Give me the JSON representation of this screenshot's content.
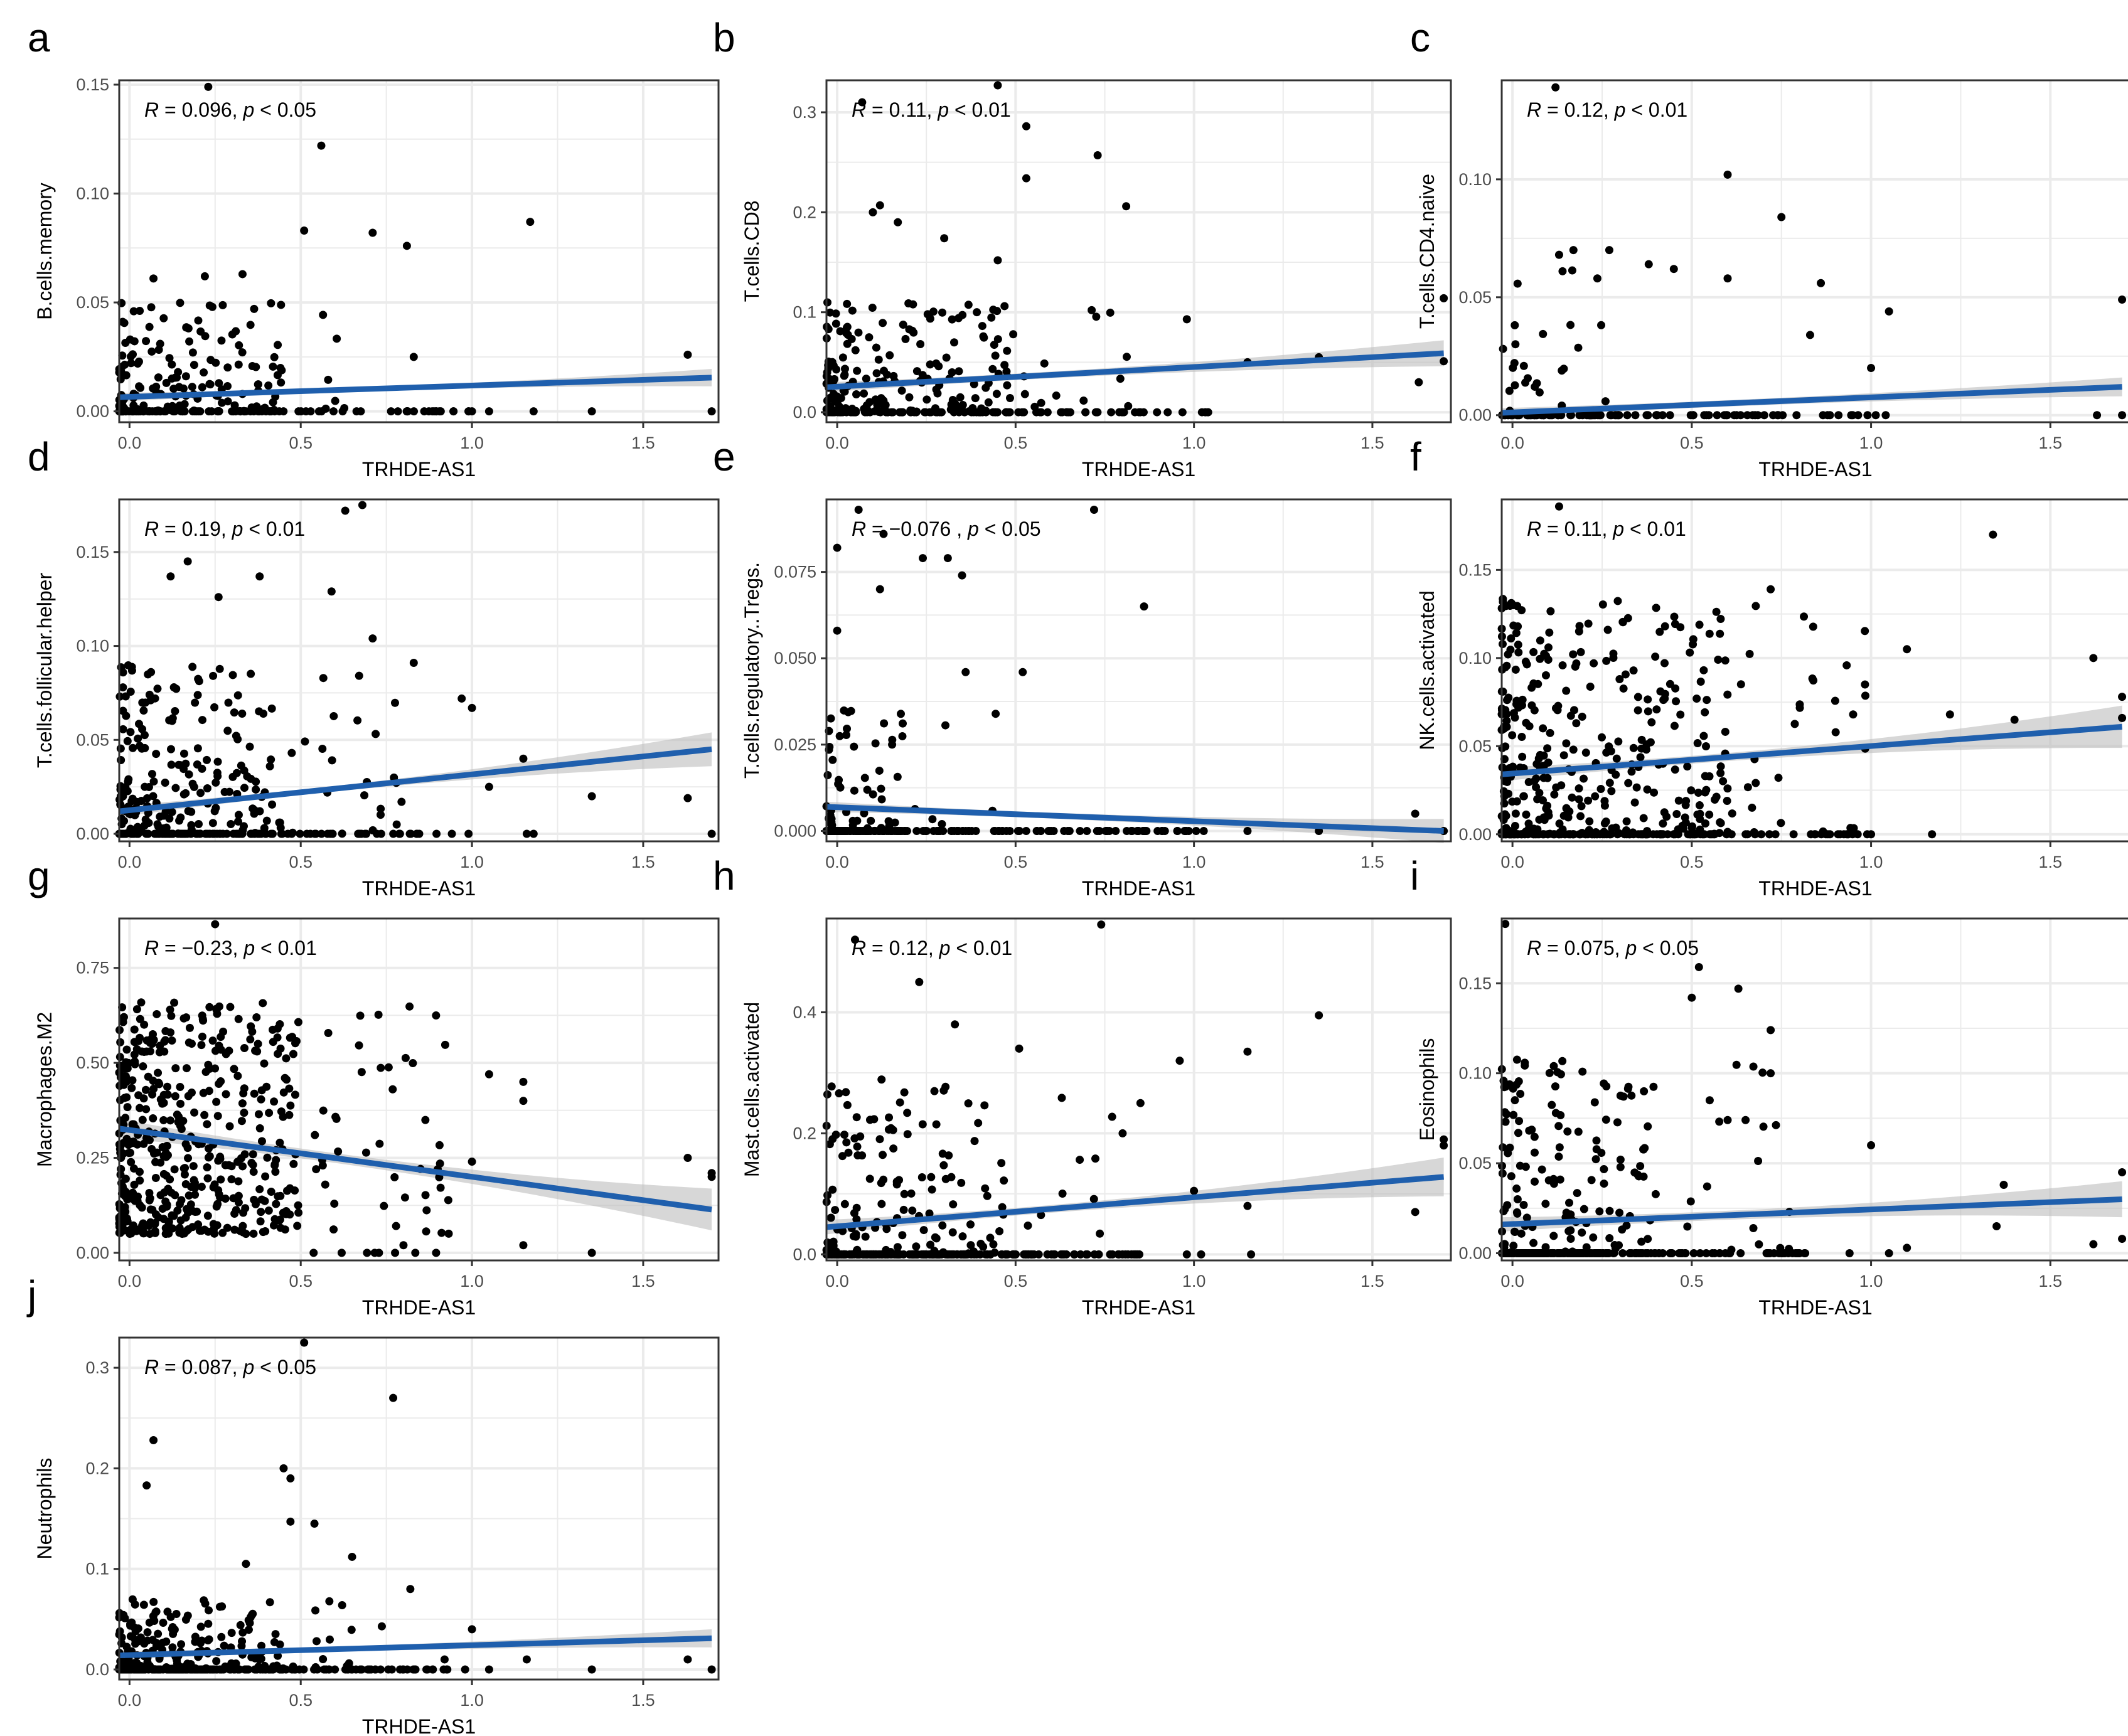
{
  "figure": {
    "x_label": "TRHDE-AS1",
    "x_ticks": [
      "0.0",
      "0.5",
      "1.0",
      "1.5"
    ],
    "colors": {
      "point": "#000000",
      "line": "#1f5fad",
      "band": "#bdbdbd",
      "grid": "#ebebeb",
      "border": "#333333"
    }
  },
  "chart_data": [
    {
      "type": "scatter",
      "panel": "a",
      "ylabel": "B.cells.memory",
      "r_label": "R",
      "r_text": " = 0.096, ",
      "p_label": "p",
      "p_text": " < 0.05",
      "xlim": [
        -0.03,
        1.72
      ],
      "ylim": [
        -0.005,
        0.152
      ],
      "yticks": [
        0.0,
        0.05,
        0.1,
        0.15
      ],
      "ytick_labels": [
        "0.00",
        "0.05",
        "0.10",
        "0.15"
      ],
      "trend": {
        "x": [
          -0.03,
          1.7
        ],
        "y": [
          0.0065,
          0.0155
        ]
      },
      "band_halfwidth": [
        0.002,
        0.001,
        0.004
      ],
      "outliers": [
        [
          0.23,
          0.149
        ],
        [
          0.56,
          0.122
        ],
        [
          0.51,
          0.083
        ],
        [
          0.71,
          0.082
        ],
        [
          0.81,
          0.076
        ],
        [
          1.17,
          0.087
        ],
        [
          0.07,
          0.061
        ],
        [
          0.22,
          0.062
        ],
        [
          0.33,
          0.063
        ],
        [
          1.63,
          0.026
        ],
        [
          0.83,
          0.025
        ],
        [
          1.18,
          0.0
        ],
        [
          1.35,
          0.0
        ],
        [
          1.7,
          0.0
        ],
        [
          1.0,
          0.0
        ],
        [
          1.05,
          0.0
        ]
      ],
      "cloud": {
        "n": 230,
        "x": [
          -0.03,
          0.65
        ],
        "xmax_dense": 0.45,
        "y": [
          0.0,
          0.05
        ],
        "zero_frac": 0.35,
        "zero_x": [
          0.35,
          1.0
        ],
        "zero_n": 30,
        "seed": 11
      }
    },
    {
      "type": "scatter",
      "panel": "b",
      "ylabel": "T.cells.CD8",
      "r_label": "R",
      "r_text": " = 0.11, ",
      "p_label": "p",
      "p_text": " < 0.01",
      "xlim": [
        -0.03,
        1.72
      ],
      "ylim": [
        -0.01,
        0.332
      ],
      "yticks": [
        0.0,
        0.1,
        0.2,
        0.3
      ],
      "ytick_labels": [
        "0.0",
        "0.1",
        "0.2",
        "0.3"
      ],
      "trend": {
        "x": [
          -0.03,
          1.7
        ],
        "y": [
          0.025,
          0.059
        ]
      },
      "band_halfwidth": [
        0.005,
        0.004,
        0.013
      ],
      "outliers": [
        [
          0.07,
          0.31
        ],
        [
          0.45,
          0.327
        ],
        [
          0.53,
          0.286
        ],
        [
          0.53,
          0.234
        ],
        [
          0.73,
          0.257
        ],
        [
          0.81,
          0.206
        ],
        [
          0.12,
          0.207
        ],
        [
          0.1,
          0.2
        ],
        [
          0.17,
          0.19
        ],
        [
          0.45,
          0.152
        ],
        [
          0.3,
          0.174
        ],
        [
          0.98,
          0.093
        ],
        [
          1.7,
          0.114
        ],
        [
          1.7,
          0.051
        ],
        [
          1.15,
          0.05
        ],
        [
          1.35,
          0.055
        ],
        [
          1.63,
          0.03
        ]
      ],
      "cloud": {
        "n": 260,
        "x": [
          -0.03,
          0.85
        ],
        "xmax_dense": 0.5,
        "y": [
          0.0,
          0.11
        ],
        "zero_frac": 0.3,
        "zero_x": [
          0.4,
          1.05
        ],
        "zero_n": 30,
        "seed": 23
      }
    },
    {
      "type": "scatter",
      "panel": "c",
      "ylabel": "T.cells.CD4.naive",
      "r_label": "R",
      "r_text": " = 0.12, ",
      "p_label": "p",
      "p_text": " < 0.01",
      "xlim": [
        -0.03,
        1.72
      ],
      "ylim": [
        -0.003,
        0.142
      ],
      "yticks": [
        0.0,
        0.05,
        0.1
      ],
      "ytick_labels": [
        "0.00",
        "0.05",
        "0.10"
      ],
      "trend": {
        "x": [
          -0.03,
          1.7
        ],
        "y": [
          0.001,
          0.012
        ]
      },
      "band_halfwidth": [
        0.002,
        0.0015,
        0.004
      ],
      "outliers": [
        [
          0.12,
          0.139
        ],
        [
          0.6,
          0.102
        ],
        [
          0.75,
          0.084
        ],
        [
          0.6,
          0.058
        ],
        [
          0.86,
          0.056
        ],
        [
          1.05,
          0.044
        ],
        [
          0.83,
          0.034
        ],
        [
          1.0,
          0.02
        ],
        [
          1.7,
          0.049
        ],
        [
          0.27,
          0.07
        ],
        [
          0.17,
          0.07
        ],
        [
          0.13,
          0.068
        ],
        [
          0.38,
          0.064
        ],
        [
          0.45,
          0.062
        ],
        [
          1.7,
          0.0
        ],
        [
          1.63,
          0.0
        ]
      ],
      "cloud": {
        "n": 60,
        "x": [
          -0.03,
          0.35
        ],
        "xmax_dense": 0.25,
        "y": [
          0.0,
          0.065
        ],
        "zero_frac": 0.55,
        "zero_x": [
          0.0,
          1.05
        ],
        "zero_n": 70,
        "seed": 37
      }
    },
    {
      "type": "scatter",
      "panel": "d",
      "ylabel": "T.cells.follicular.helper",
      "r_label": "R",
      "r_text": " = 0.19, ",
      "p_label": "p",
      "p_text": " < 0.01",
      "xlim": [
        -0.03,
        1.72
      ],
      "ylim": [
        -0.004,
        0.178
      ],
      "yticks": [
        0.0,
        0.05,
        0.1,
        0.15
      ],
      "ytick_labels": [
        "0.00",
        "0.05",
        "0.10",
        "0.15"
      ],
      "trend": {
        "x": [
          -0.03,
          1.7
        ],
        "y": [
          0.012,
          0.045
        ]
      },
      "band_halfwidth": [
        0.003,
        0.002,
        0.009
      ],
      "outliers": [
        [
          0.63,
          0.172
        ],
        [
          0.68,
          0.175
        ],
        [
          0.17,
          0.145
        ],
        [
          0.12,
          0.137
        ],
        [
          0.38,
          0.137
        ],
        [
          0.26,
          0.126
        ],
        [
          0.59,
          0.129
        ],
        [
          0.83,
          0.091
        ],
        [
          0.71,
          0.104
        ],
        [
          0.97,
          0.072
        ],
        [
          1.0,
          0.067
        ],
        [
          1.15,
          0.04
        ],
        [
          1.05,
          0.025
        ],
        [
          1.35,
          0.02
        ],
        [
          1.63,
          0.019
        ],
        [
          1.7,
          0.0
        ],
        [
          1.16,
          0.0
        ],
        [
          1.18,
          0.0
        ],
        [
          0.99,
          0.0
        ]
      ],
      "cloud": {
        "n": 300,
        "x": [
          -0.03,
          0.8
        ],
        "xmax_dense": 0.45,
        "y": [
          0.0,
          0.09
        ],
        "zero_frac": 0.3,
        "zero_x": [
          0.0,
          0.95
        ],
        "zero_n": 35,
        "seed": 41
      }
    },
    {
      "type": "scatter",
      "panel": "e",
      "ylabel": "T.cells.regulatory..Tregs.",
      "r_label": "R",
      "r_text": " = −0.076 , ",
      "p_label": "p",
      "p_text": " < 0.05",
      "xlim": [
        -0.03,
        1.72
      ],
      "ylim": [
        -0.003,
        0.096
      ],
      "yticks": [
        0.0,
        0.025,
        0.05,
        0.075
      ],
      "ytick_labels": [
        "0.000",
        "0.025",
        "0.050",
        "0.075"
      ],
      "trend": {
        "x": [
          -0.03,
          1.7
        ],
        "y": [
          0.007,
          0.0
        ]
      },
      "band_halfwidth": [
        0.0015,
        0.001,
        0.0035
      ],
      "outliers": [
        [
          0.06,
          0.093
        ],
        [
          0.72,
          0.093
        ],
        [
          0.13,
          0.086
        ],
        [
          0.24,
          0.079
        ],
        [
          0.31,
          0.079
        ],
        [
          0.35,
          0.074
        ],
        [
          0.0,
          0.082
        ],
        [
          0.12,
          0.07
        ],
        [
          0.52,
          0.046
        ],
        [
          0.36,
          0.046
        ],
        [
          0.86,
          0.065
        ],
        [
          0.0,
          0.0
        ],
        [
          1.62,
          0.005
        ],
        [
          1.7,
          0.0
        ],
        [
          1.15,
          0.0
        ],
        [
          1.35,
          0.0
        ],
        [
          0.0,
          0.058
        ]
      ],
      "cloud": {
        "n": 150,
        "x": [
          -0.03,
          0.55
        ],
        "xmax_dense": 0.2,
        "y": [
          0.0,
          0.035
        ],
        "zero_frac": 0.55,
        "zero_x": [
          -0.03,
          1.05
        ],
        "zero_n": 80,
        "seed": 53
      }
    },
    {
      "type": "scatter",
      "panel": "f",
      "ylabel": "NK.cells.activated",
      "r_label": "R",
      "r_text": " = 0.11, ",
      "p_label": "p",
      "p_text": " < 0.01",
      "xlim": [
        -0.03,
        1.72
      ],
      "ylim": [
        -0.004,
        0.19
      ],
      "yticks": [
        0.0,
        0.05,
        0.1,
        0.15
      ],
      "ytick_labels": [
        "0.00",
        "0.05",
        "0.10",
        "0.15"
      ],
      "trend": {
        "x": [
          -0.03,
          1.7
        ],
        "y": [
          0.034,
          0.061
        ]
      },
      "band_halfwidth": [
        0.004,
        0.003,
        0.012
      ],
      "outliers": [
        [
          0.13,
          0.186
        ],
        [
          1.34,
          0.17
        ],
        [
          0.72,
          0.139
        ],
        [
          1.62,
          0.1
        ],
        [
          1.7,
          0.078
        ],
        [
          1.7,
          0.066
        ],
        [
          1.1,
          0.105
        ],
        [
          1.4,
          0.065
        ],
        [
          1.22,
          0.068
        ],
        [
          1.17,
          0.0
        ],
        [
          1.0,
          0.0
        ],
        [
          0.95,
          0.068
        ]
      ],
      "cloud": {
        "n": 480,
        "x": [
          -0.03,
          1.0
        ],
        "xmax_dense": 0.6,
        "y": [
          0.0,
          0.135
        ],
        "zero_frac": 0.25,
        "zero_x": [
          -0.03,
          0.95
        ],
        "zero_n": 40,
        "seed": 67
      }
    },
    {
      "type": "scatter",
      "panel": "g",
      "ylabel": "Macrophages.M2",
      "r_label": "R",
      "r_text": " = −0.23, ",
      "p_label": "p",
      "p_text": " < 0.01",
      "xlim": [
        -0.03,
        1.72
      ],
      "ylim": [
        -0.02,
        0.88
      ],
      "yticks": [
        0.0,
        0.25,
        0.5,
        0.75
      ],
      "ytick_labels": [
        "0.00",
        "0.25",
        "0.50",
        "0.75"
      ],
      "trend": {
        "x": [
          -0.03,
          1.7
        ],
        "y": [
          0.327,
          0.114
        ]
      },
      "band_halfwidth": [
        0.025,
        0.015,
        0.055
      ],
      "outliers": [
        [
          0.25,
          0.865
        ],
        [
          1.05,
          0.47
        ],
        [
          1.15,
          0.45
        ],
        [
          1.15,
          0.4
        ],
        [
          1.0,
          0.24
        ],
        [
          1.15,
          0.02
        ],
        [
          1.35,
          0.0
        ],
        [
          1.63,
          0.25
        ],
        [
          1.7,
          0.2
        ],
        [
          1.7,
          0.21
        ],
        [
          0.8,
          0.02
        ],
        [
          0.9,
          0.22
        ]
      ],
      "cloud": {
        "n": 520,
        "x": [
          -0.03,
          0.95
        ],
        "xmax_dense": 0.5,
        "y": [
          0.05,
          0.66
        ],
        "zero_frac": 0.0,
        "zero_x": [
          0.5,
          0.9
        ],
        "zero_n": 8,
        "seed": 71
      }
    },
    {
      "type": "scatter",
      "panel": "h",
      "ylabel": "Mast.cells.activated",
      "r_label": "R",
      "r_text": " = 0.12, ",
      "p_label": "p",
      "p_text": " < 0.01",
      "xlim": [
        -0.03,
        1.72
      ],
      "ylim": [
        -0.01,
        0.555
      ],
      "yticks": [
        0.0,
        0.2,
        0.4
      ],
      "ytick_labels": [
        "0.0",
        "0.2",
        "0.4"
      ],
      "trend": {
        "x": [
          -0.03,
          1.7
        ],
        "y": [
          0.045,
          0.128
        ]
      },
      "band_halfwidth": [
        0.012,
        0.008,
        0.032
      ],
      "outliers": [
        [
          0.05,
          0.52
        ],
        [
          0.74,
          0.545
        ],
        [
          0.23,
          0.45
        ],
        [
          0.33,
          0.38
        ],
        [
          0.51,
          0.34
        ],
        [
          0.96,
          0.32
        ],
        [
          1.15,
          0.335
        ],
        [
          1.35,
          0.395
        ],
        [
          1.7,
          0.19
        ],
        [
          1.7,
          0.18
        ],
        [
          1.15,
          0.08
        ],
        [
          1.62,
          0.07
        ],
        [
          1.0,
          0.105
        ],
        [
          1.16,
          0.0
        ],
        [
          1.02,
          0.0
        ],
        [
          0.98,
          0.0
        ],
        [
          0.85,
          0.25
        ],
        [
          0.8,
          0.2
        ]
      ],
      "cloud": {
        "n": 260,
        "x": [
          -0.03,
          0.85
        ],
        "xmax_dense": 0.5,
        "y": [
          0.0,
          0.3
        ],
        "zero_frac": 0.45,
        "zero_x": [
          -0.03,
          0.85
        ],
        "zero_n": 90,
        "seed": 83
      }
    },
    {
      "type": "scatter",
      "panel": "i",
      "ylabel": "Eosinophils",
      "r_label": "R",
      "r_text": " = 0.075, ",
      "p_label": "p",
      "p_text": " < 0.05",
      "xlim": [
        -0.03,
        1.72
      ],
      "ylim": [
        -0.004,
        0.186
      ],
      "yticks": [
        0.0,
        0.05,
        0.1,
        0.15
      ],
      "ytick_labels": [
        "0.00",
        "0.05",
        "0.10",
        "0.15"
      ],
      "trend": {
        "x": [
          -0.03,
          1.7
        ],
        "y": [
          0.016,
          0.03
        ]
      },
      "band_halfwidth": [
        0.004,
        0.003,
        0.01
      ],
      "outliers": [
        [
          -0.02,
          0.183
        ],
        [
          0.52,
          0.159
        ],
        [
          0.5,
          0.142
        ],
        [
          0.63,
          0.147
        ],
        [
          0.72,
          0.124
        ],
        [
          0.72,
          0.1
        ],
        [
          0.55,
          0.085
        ],
        [
          1.0,
          0.06
        ],
        [
          1.37,
          0.038
        ],
        [
          1.35,
          0.015
        ],
        [
          1.7,
          0.045
        ],
        [
          1.7,
          0.008
        ],
        [
          1.62,
          0.005
        ],
        [
          0.94,
          0.0
        ],
        [
          1.05,
          0.0
        ],
        [
          1.1,
          0.003
        ],
        [
          0.65,
          0.074
        ],
        [
          0.6,
          0.074
        ]
      ],
      "cloud": {
        "n": 300,
        "x": [
          -0.03,
          0.8
        ],
        "xmax_dense": 0.4,
        "y": [
          0.0,
          0.11
        ],
        "zero_frac": 0.45,
        "zero_x": [
          -0.03,
          0.85
        ],
        "zero_n": 70,
        "seed": 97
      }
    },
    {
      "type": "scatter",
      "panel": "j",
      "ylabel": "Neutrophils",
      "r_label": "R",
      "r_text": " = 0.087, ",
      "p_label": "p",
      "p_text": " < 0.05",
      "xlim": [
        -0.03,
        1.72
      ],
      "ylim": [
        -0.01,
        0.33
      ],
      "yticks": [
        0.0,
        0.1,
        0.2,
        0.3
      ],
      "ytick_labels": [
        "0.0",
        "0.1",
        "0.2",
        "0.3"
      ],
      "trend": {
        "x": [
          -0.03,
          1.7
        ],
        "y": [
          0.014,
          0.031
        ]
      },
      "band_halfwidth": [
        0.004,
        0.003,
        0.009
      ],
      "outliers": [
        [
          0.51,
          0.325
        ],
        [
          0.77,
          0.27
        ],
        [
          0.07,
          0.228
        ],
        [
          0.45,
          0.2
        ],
        [
          0.47,
          0.19
        ],
        [
          0.05,
          0.183
        ],
        [
          0.47,
          0.147
        ],
        [
          0.54,
          0.145
        ],
        [
          0.65,
          0.112
        ],
        [
          0.34,
          0.105
        ],
        [
          0.82,
          0.08
        ],
        [
          1.0,
          0.04
        ],
        [
          1.16,
          0.01
        ],
        [
          1.35,
          0.0
        ],
        [
          1.63,
          0.01
        ],
        [
          1.7,
          0.0
        ],
        [
          1.05,
          0.0
        ],
        [
          0.98,
          0.0
        ],
        [
          0.92,
          0.01
        ]
      ],
      "cloud": {
        "n": 330,
        "x": [
          -0.03,
          0.85
        ],
        "xmax_dense": 0.45,
        "y": [
          0.0,
          0.07
        ],
        "zero_frac": 0.45,
        "zero_x": [
          -0.03,
          0.95
        ],
        "zero_n": 60,
        "seed": 109
      }
    }
  ]
}
